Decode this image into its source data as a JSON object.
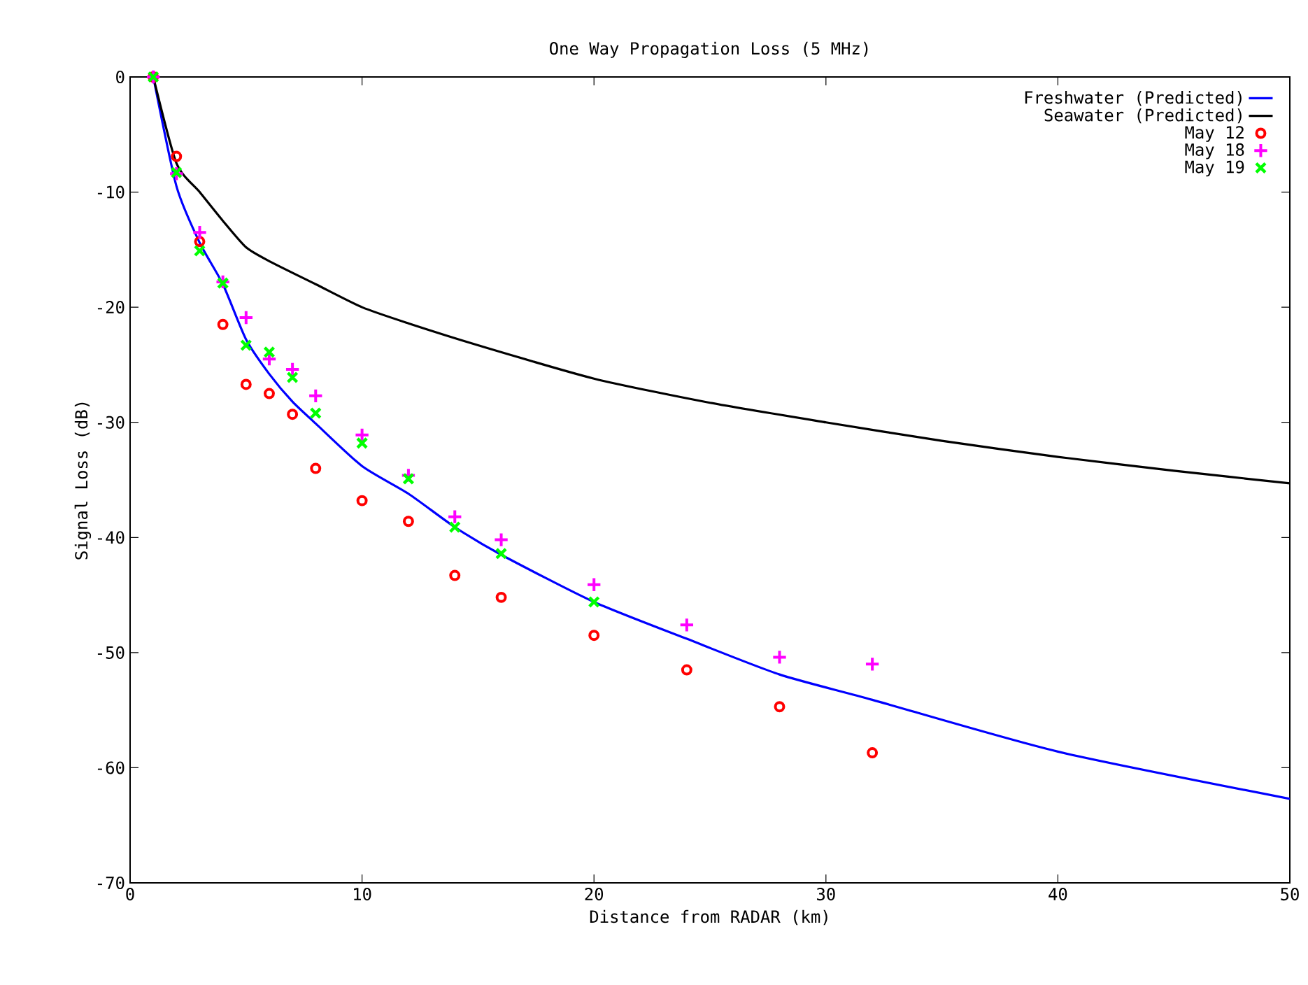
{
  "chart_data": {
    "type": "line",
    "title": "One Way Propagation Loss (5 MHz)",
    "xlabel": "Distance from RADAR (km)",
    "ylabel": "Signal Loss (dB)",
    "xlim": [
      0,
      50
    ],
    "ylim": [
      -70,
      0
    ],
    "xticks": [
      0,
      10,
      20,
      30,
      40,
      50
    ],
    "yticks": [
      -70,
      -60,
      -50,
      -40,
      -30,
      -20,
      -10,
      0
    ],
    "grid": false,
    "legend": "top right",
    "series": [
      {
        "name": "Freshwater (Predicted)",
        "color": "#0000ff",
        "marker": "none",
        "line_style": "solid",
        "x": [
          1,
          2,
          3,
          4,
          5,
          6,
          7,
          8,
          10,
          12,
          14,
          16,
          20,
          24,
          28,
          32,
          40,
          50
        ],
        "values": [
          0,
          -9.5,
          -14.4,
          -18,
          -22.8,
          -25.8,
          -28.2,
          -30.1,
          -33.8,
          -36.2,
          -39.1,
          -41.5,
          -45.6,
          -48.8,
          -51.9,
          -54.1,
          -58.6,
          -62.7
        ]
      },
      {
        "name": "Seawater (Predicted)",
        "color": "#000000",
        "marker": "none",
        "line_style": "solid",
        "x": [
          1,
          2,
          3,
          4,
          5,
          6,
          8,
          10,
          12,
          15,
          20,
          25,
          30,
          35,
          40,
          45,
          50
        ],
        "values": [
          0,
          -7.5,
          -10,
          -12.5,
          -14.8,
          -16,
          -18,
          -20,
          -21.4,
          -23.3,
          -26.2,
          -28.3,
          -30,
          -31.6,
          -33,
          -34.2,
          -35.3
        ]
      },
      {
        "name": "May 12",
        "type": "scatter",
        "color": "#ff0000",
        "marker": "circle",
        "x": [
          1,
          2,
          3,
          4,
          5,
          6,
          7,
          8,
          10,
          12,
          14,
          16,
          20,
          24,
          28,
          32
        ],
        "values": [
          0,
          -6.9,
          -14.3,
          -21.5,
          -26.7,
          -27.5,
          -29.3,
          -34,
          -36.8,
          -38.6,
          -43.3,
          -45.2,
          -48.5,
          -51.5,
          -54.7,
          -58.7
        ]
      },
      {
        "name": "May 18",
        "type": "scatter",
        "color": "#ff00ff",
        "marker": "plus",
        "x": [
          1,
          2,
          3,
          4,
          5,
          6,
          7,
          8,
          10,
          12,
          14,
          16,
          20,
          24,
          28,
          32
        ],
        "values": [
          0,
          -8.4,
          -13.5,
          -17.8,
          -20.9,
          -24.5,
          -25.4,
          -27.7,
          -31.1,
          -34.6,
          -38.2,
          -40.2,
          -44.1,
          -47.6,
          -50.4,
          -51
        ]
      },
      {
        "name": "May 19",
        "type": "scatter",
        "color": "#00ff00",
        "marker": "cross",
        "x": [
          1,
          2,
          3,
          4,
          5,
          6,
          7,
          8,
          10,
          12,
          14,
          16,
          20
        ],
        "values": [
          0,
          -8.3,
          -15.1,
          -17.9,
          -23.3,
          -23.9,
          -26.1,
          -29.2,
          -31.8,
          -34.9,
          -39.1,
          -41.4,
          -45.6
        ]
      }
    ]
  }
}
